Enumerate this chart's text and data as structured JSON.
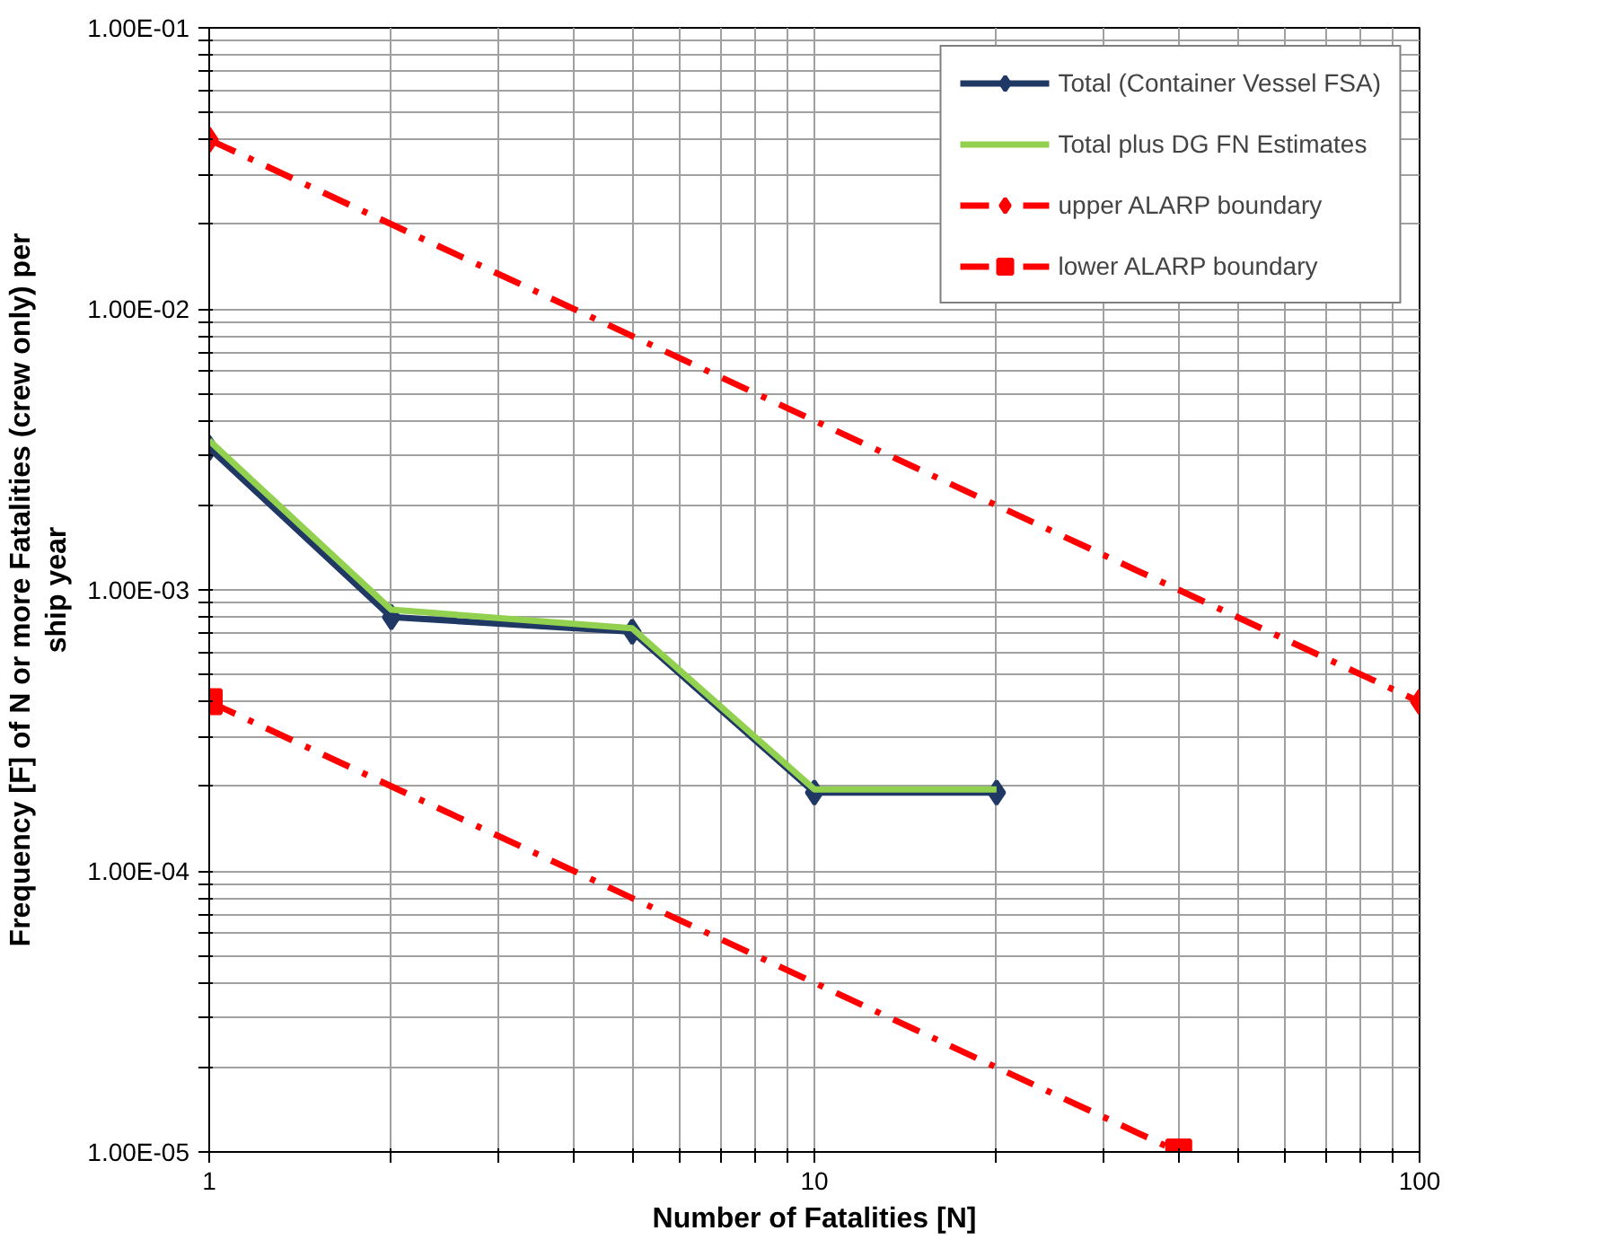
{
  "chart_data": {
    "type": "line",
    "xlabel": "Number of Fatalities [N]",
    "ylabel": "Frequency [F] of N or more Fatalities (crew only) per ship year",
    "log": "xy",
    "xlim": [
      1,
      100
    ],
    "ylim": [
      1e-05,
      0.1
    ],
    "xticks": [
      1,
      {
        "value": 2,
        "label": null
      },
      {
        "value": 3,
        "label": null
      },
      {
        "value": 4,
        "label": null
      },
      {
        "value": 5,
        "label": null
      },
      {
        "value": 6,
        "label": null
      },
      {
        "value": 7,
        "label": null
      },
      {
        "value": 8,
        "label": null
      },
      {
        "value": 9,
        "label": null
      },
      10,
      {
        "value": 20,
        "label": null
      },
      {
        "value": 30,
        "label": null
      },
      {
        "value": 40,
        "label": null
      },
      {
        "value": 50,
        "label": null
      },
      {
        "value": 60,
        "label": null
      },
      {
        "value": 70,
        "label": null
      },
      {
        "value": 80,
        "label": null
      },
      {
        "value": 90,
        "label": null
      },
      100
    ],
    "yticks": [
      {
        "value": 1e-05,
        "label": "1.00E-05"
      },
      {
        "value": 2e-05,
        "label": null
      },
      {
        "value": 3e-05,
        "label": null
      },
      {
        "value": 4e-05,
        "label": null
      },
      {
        "value": 5e-05,
        "label": null
      },
      {
        "value": 6e-05,
        "label": null
      },
      {
        "value": 7e-05,
        "label": null
      },
      {
        "value": 8e-05,
        "label": null
      },
      {
        "value": 9e-05,
        "label": null
      },
      {
        "value": 0.0001,
        "label": "1.00E-04"
      },
      {
        "value": 0.0002,
        "label": null
      },
      {
        "value": 0.0003,
        "label": null
      },
      {
        "value": 0.0004,
        "label": null
      },
      {
        "value": 0.0005,
        "label": null
      },
      {
        "value": 0.0006,
        "label": null
      },
      {
        "value": 0.0007,
        "label": null
      },
      {
        "value": 0.0008,
        "label": null
      },
      {
        "value": 0.0009,
        "label": null
      },
      {
        "value": 0.001,
        "label": "1.00E-03"
      },
      {
        "value": 0.002,
        "label": null
      },
      {
        "value": 0.003,
        "label": null
      },
      {
        "value": 0.004,
        "label": null
      },
      {
        "value": 0.005,
        "label": null
      },
      {
        "value": 0.006,
        "label": null
      },
      {
        "value": 0.007,
        "label": null
      },
      {
        "value": 0.008,
        "label": null
      },
      {
        "value": 0.009,
        "label": null
      },
      {
        "value": 0.01,
        "label": "1.00E-02"
      },
      {
        "value": 0.02,
        "label": null
      },
      {
        "value": 0.03,
        "label": null
      },
      {
        "value": 0.04,
        "label": null
      },
      {
        "value": 0.05,
        "label": null
      },
      {
        "value": 0.06,
        "label": null
      },
      {
        "value": 0.07,
        "label": null
      },
      {
        "value": 0.08,
        "label": null
      },
      {
        "value": 0.09,
        "label": null
      },
      {
        "value": 0.1,
        "label": "1.00E-01"
      }
    ],
    "grid": true,
    "legend": "top right",
    "series": [
      {
        "name": "Total (Container Vessel FSA)",
        "color": "#1f3864",
        "x": [
          1,
          2,
          5,
          10,
          20
        ],
        "values": [
          0.0032,
          0.0008,
          0.00071,
          0.00019,
          0.00019
        ],
        "marker": "diamond",
        "line_style": "solid"
      },
      {
        "name": "Total plus DG FN Estimates",
        "color": "#92d050",
        "x": [
          1,
          2,
          5,
          10,
          20
        ],
        "values": [
          0.0034,
          0.00085,
          0.00073,
          0.000195,
          0.000195
        ],
        "marker": "none",
        "line_style": "solid"
      },
      {
        "name": "upper ALARP boundary",
        "color": "#ff0000",
        "x": [
          1,
          100
        ],
        "values": [
          0.04,
          0.0004
        ],
        "marker": "diamond",
        "line_style": "dashdot"
      },
      {
        "name": "lower ALARP boundary",
        "color": "#ff0000",
        "x": [
          1,
          40
        ],
        "values": [
          0.0004,
          1e-05
        ],
        "marker": "square",
        "line_style": "dashdot"
      }
    ]
  }
}
